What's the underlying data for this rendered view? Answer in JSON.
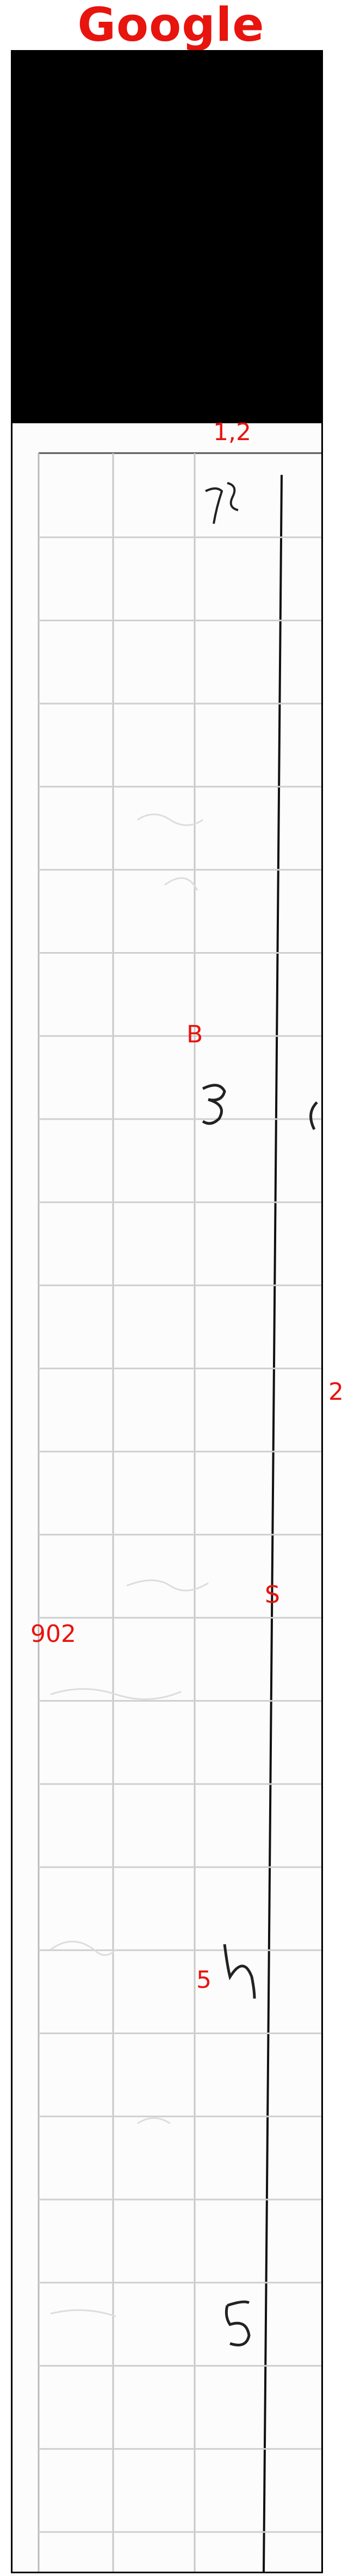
{
  "brand": {
    "text": "Google",
    "color": "#e8140e"
  },
  "labels": {
    "l1": "1,2",
    "l2": "B",
    "l3": "2",
    "l4": "902",
    "l5": "S",
    "l6": "5"
  }
}
